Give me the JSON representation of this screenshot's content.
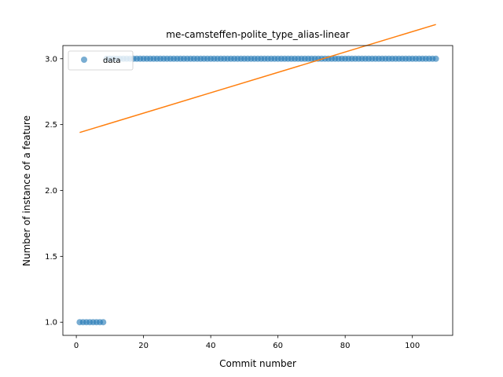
{
  "chart_data": {
    "type": "scatter",
    "title": "me-camsteffen-polite_type_alias-linear",
    "xlabel": "Commit number",
    "ylabel": "Number of instance of a feature",
    "xlim": [
      -4,
      112
    ],
    "ylim": [
      0.9,
      3.1
    ],
    "xticks": [
      0,
      20,
      40,
      60,
      80,
      100
    ],
    "xtick_labels": [
      "0",
      "20",
      "40",
      "60",
      "80",
      "100"
    ],
    "yticks": [
      1.0,
      1.5,
      2.0,
      2.5,
      3.0
    ],
    "ytick_labels": [
      "1.0",
      "1.5",
      "2.0",
      "2.5",
      "3.0"
    ],
    "legend": {
      "position": "top-left",
      "entries": [
        "data"
      ]
    },
    "grid": false,
    "colors": {
      "data": "#1f77b4",
      "fit": "#ff7f0e"
    },
    "series": [
      {
        "name": "data",
        "kind": "points",
        "segments": [
          {
            "x_start": 1,
            "x_end": 8,
            "y": 1.0
          },
          {
            "x_start": 9,
            "x_end": 107,
            "y": 3.0
          }
        ]
      },
      {
        "kind": "line",
        "x": [
          1,
          107
        ],
        "y": [
          2.44,
          3.26
        ]
      }
    ]
  }
}
